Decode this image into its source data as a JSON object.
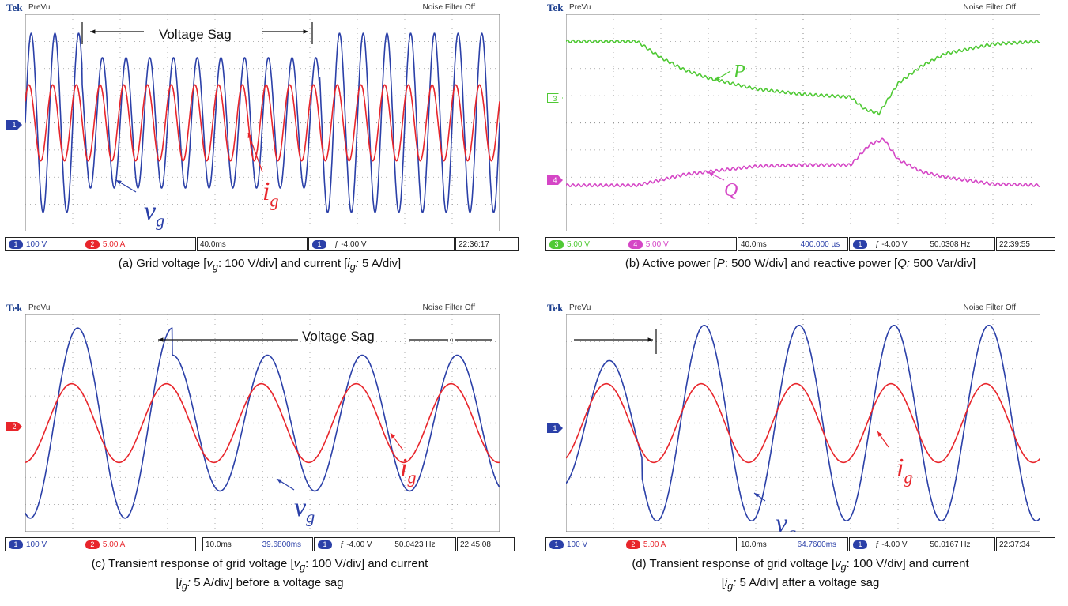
{
  "scope": {
    "brand": "Tek",
    "mode": "PreVu",
    "noise_filter": "Noise Filter Off"
  },
  "colors": {
    "blue": "#2b40a8",
    "red": "#e8252b",
    "green": "#4fc934",
    "magenta": "#d546c6",
    "grid": "#888888"
  },
  "panels": {
    "a": {
      "status": {
        "ch1": "100 V",
        "ch2": "5.00 A",
        "timebase": "40.0ms",
        "delay": "",
        "trigger": "-4.00 V",
        "freq": "",
        "clock": "22:36:17"
      },
      "annotation": "Voltage Sag",
      "caption": "(a) Grid voltage [vg: 100 V/div] and current [ig: 5 A/div]"
    },
    "b": {
      "status": {
        "ch3": "5.00 V",
        "ch4": "5.00 V",
        "timebase": "40.0ms",
        "delay": "400.000 µs",
        "trigger": "-4.00 V",
        "freq": "50.0308 Hz",
        "clock": "22:39:55"
      },
      "caption": "(b) Active power [P: 500 W/div] and reactive power [Q: 500 Var/div]"
    },
    "c": {
      "status": {
        "ch1": "100 V",
        "ch2": "5.00 A",
        "timebase": "10.0ms",
        "delay": "39.6800ms",
        "trigger": "-4.00 V",
        "freq": "50.0423 Hz",
        "clock": "22:45:08"
      },
      "annotation": "Voltage Sag",
      "caption_line1": "(c) Transient response of grid voltage [vg: 100 V/div] and current",
      "caption_line2": "[ig: 5 A/div] before a voltage sag"
    },
    "d": {
      "status": {
        "ch1": "100 V",
        "ch2": "5.00 A",
        "timebase": "10.0ms",
        "delay": "64.7600ms",
        "trigger": "-4.00 V",
        "freq": "50.0167 Hz",
        "clock": "22:37:34"
      },
      "caption_line1": "(d) Transient response of grid voltage [vg: 100 V/div] and current",
      "caption_line2": "[ig: 5 A/div] after a voltage sag"
    }
  },
  "chart_data": [
    {
      "type": "line",
      "x_unit": "div",
      "xlim": [
        0,
        10
      ],
      "ylim": [
        -4,
        4
      ],
      "grid": true,
      "series": [
        {
          "name": "vg",
          "color": "#2b40a8",
          "shape": "sine",
          "cycles": 20,
          "amplitude": 3.3,
          "sag_amplitude": 2.4,
          "sag_start": 1.2,
          "sag_end": 6.2
        },
        {
          "name": "ig",
          "color": "#e8252b",
          "shape": "sine",
          "cycles": 20,
          "amplitude": 1.4,
          "sag_amplitude": 1.4,
          "phase": 0.6
        }
      ],
      "labels": [
        "vg",
        "ig"
      ]
    },
    {
      "type": "line",
      "x_unit": "div",
      "xlim": [
        0,
        10
      ],
      "ylim": [
        -4,
        4
      ],
      "grid": true,
      "series": [
        {
          "name": "P",
          "color": "#4fc934",
          "x": [
            0,
            1.5,
            2.0,
            2.5,
            3.0,
            4.0,
            5.0,
            6.0,
            6.3,
            6.6,
            7.0,
            7.5,
            8.0,
            9.0,
            10.0
          ],
          "y": [
            3.0,
            3.0,
            2.4,
            1.95,
            1.65,
            1.25,
            1.05,
            0.95,
            0.5,
            0.35,
            1.45,
            2.1,
            2.55,
            2.9,
            3.0
          ]
        },
        {
          "name": "Q",
          "color": "#d546c6",
          "x": [
            0,
            1.5,
            2.0,
            2.5,
            3.0,
            4.0,
            5.0,
            6.0,
            6.4,
            6.7,
            7.0,
            7.5,
            8.0,
            9.0,
            10.0
          ],
          "y": [
            -2.3,
            -2.3,
            -2.1,
            -1.9,
            -1.8,
            -1.6,
            -1.55,
            -1.55,
            -0.8,
            -0.6,
            -1.35,
            -1.8,
            -2.0,
            -2.25,
            -2.3
          ]
        }
      ],
      "labels": [
        "P",
        "Q"
      ]
    },
    {
      "type": "line",
      "x_unit": "div",
      "xlim": [
        0,
        10
      ],
      "ylim": [
        -4,
        4
      ],
      "grid": true,
      "series": [
        {
          "name": "vg",
          "color": "#2b40a8",
          "shape": "sine",
          "cycles": 5,
          "amplitude": 3.5,
          "sag_amplitude": 2.5,
          "sag_start": 3.1,
          "sag_end": 10,
          "phase": -1.9
        },
        {
          "name": "ig",
          "color": "#e8252b",
          "shape": "sine",
          "cycles": 5,
          "amplitude": 1.45,
          "sag_amplitude": 1.45,
          "phase": -1.5
        }
      ],
      "labels": [
        "vg",
        "ig"
      ]
    },
    {
      "type": "line",
      "x_unit": "div",
      "xlim": [
        0,
        10
      ],
      "ylim": [
        -4,
        4
      ],
      "grid": true,
      "series": [
        {
          "name": "vg",
          "color": "#2b40a8",
          "shape": "sine",
          "cycles": 5,
          "amplitude": 3.6,
          "sag_amplitude": 2.3,
          "sag_start": 0,
          "sag_end": 1.6,
          "phase": -1.3
        },
        {
          "name": "ig",
          "color": "#e8252b",
          "shape": "sine",
          "cycles": 5,
          "amplitude": 1.45,
          "sag_amplitude": 1.45,
          "phase": -1.1
        }
      ],
      "labels": [
        "vg",
        "ig"
      ]
    }
  ]
}
